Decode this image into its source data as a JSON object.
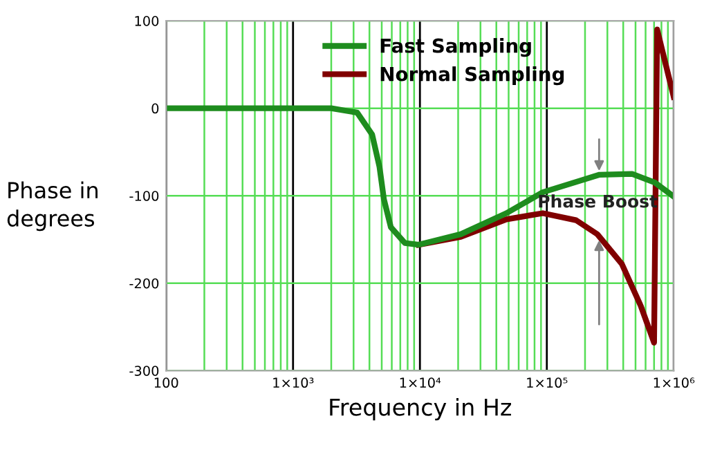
{
  "chart_data": {
    "type": "line",
    "xlabel": "Frequency in Hz",
    "ylabel": "Phase in\ndegrees",
    "log": "x",
    "xlim": [
      100,
      1000000
    ],
    "xticks": [
      100,
      {
        "value": 1000,
        "label": "1×10³"
      },
      {
        "value": 10000,
        "label": "1×10⁴"
      },
      {
        "value": 100000,
        "label": "1×10⁵"
      },
      {
        "value": 1000000,
        "label": "1×10⁶"
      }
    ],
    "ylim": [
      -300,
      100
    ],
    "yticks": [
      -300,
      -200,
      -100,
      0,
      100
    ],
    "grid": true,
    "legend": "top",
    "line_style": "solid",
    "marker": "none",
    "series": [
      {
        "name": "Normal Sampling",
        "color": "#800000",
        "x": [
          9800,
          21000,
          48000,
          93000,
          170000,
          250000,
          390000,
          550000,
          700000,
          740000,
          1000000
        ],
        "values": [
          -156,
          -147,
          -127,
          -120,
          -128,
          -144,
          -178,
          -226,
          -268,
          90,
          13
        ]
      },
      {
        "name": "Fast Sampling",
        "color": "#1e8c1e",
        "x": [
          100,
          2000,
          3200,
          4200,
          4800,
          5200,
          5900,
          7600,
          9800,
          21000,
          48000,
          93000,
          260000,
          470000,
          710000,
          1000000
        ],
        "values": [
          0,
          0,
          -5,
          -30,
          -67,
          -104,
          -136,
          -154,
          -156,
          -144,
          -120,
          -96,
          -76,
          -75,
          -85,
          -101
        ]
      }
    ],
    "annotations": [
      "Phase Boost"
    ]
  }
}
